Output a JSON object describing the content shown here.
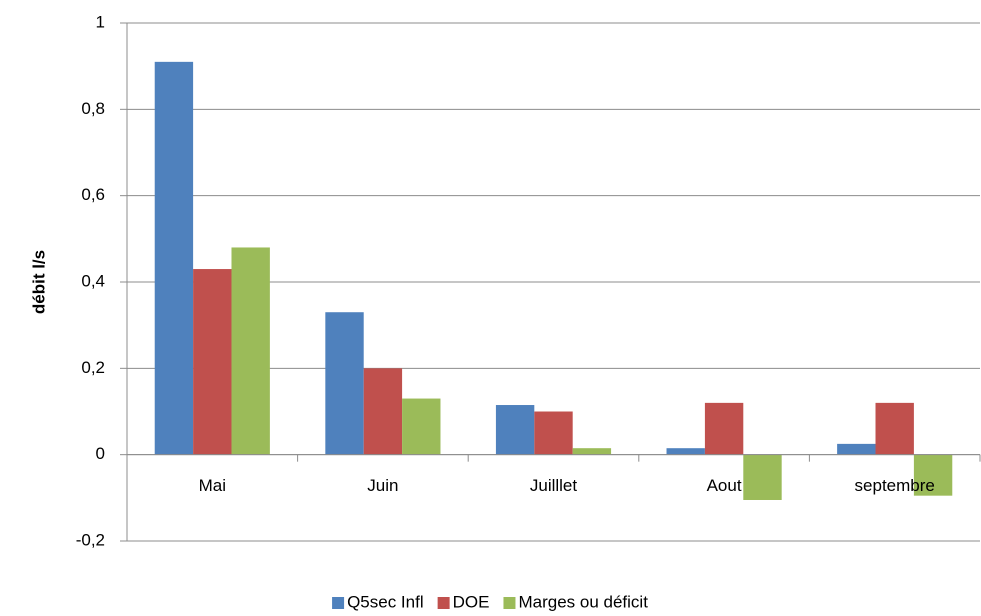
{
  "chart_data": {
    "type": "bar",
    "y_label": "débit l/s",
    "categories": [
      "Mai",
      "Juin",
      "Juilllet",
      "Aout",
      "septembre"
    ],
    "series": [
      {
        "name": "Q5sec Infl",
        "color": "#4f81bd",
        "values": [
          0.91,
          0.33,
          0.115,
          0.015,
          0.025
        ]
      },
      {
        "name": "DOE",
        "color": "#c0504d",
        "values": [
          0.43,
          0.2,
          0.1,
          0.12,
          0.12
        ]
      },
      {
        "name": "Marges ou déficit",
        "color": "#9bbb59",
        "values": [
          0.48,
          0.13,
          0.015,
          -0.105,
          -0.095
        ]
      }
    ],
    "ylim": [
      -0.2,
      1
    ],
    "yticks": [
      {
        "value": -0.2,
        "label": "-0,2"
      },
      0,
      {
        "value": 0.2,
        "label": "0,2"
      },
      {
        "value": 0.4,
        "label": "0,4"
      },
      {
        "value": 0.6,
        "label": "0,6"
      },
      {
        "value": 0.8,
        "label": "0,8"
      },
      1
    ],
    "grid": true,
    "legend": "bottom"
  }
}
